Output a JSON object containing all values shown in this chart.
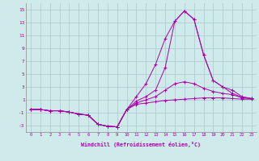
{
  "xlabel": "Windchill (Refroidissement éolien,°C)",
  "background_color": "#ceeaea",
  "grid_color": "#aac8c8",
  "line_color": "#aa00aa",
  "x_values": [
    0,
    1,
    2,
    3,
    4,
    5,
    6,
    7,
    8,
    9,
    10,
    11,
    12,
    13,
    14,
    15,
    16,
    17,
    18,
    19,
    20,
    21,
    22,
    23
  ],
  "series": [
    [
      -0.5,
      -0.5,
      -0.7,
      -0.7,
      -0.9,
      -1.2,
      -1.4,
      -2.8,
      -3.1,
      -3.2,
      -0.5,
      0.3,
      0.5,
      0.7,
      0.9,
      1.0,
      1.1,
      1.2,
      1.3,
      1.3,
      1.3,
      1.2,
      1.1,
      1.1
    ],
    [
      -0.5,
      -0.5,
      -0.7,
      -0.7,
      -0.9,
      -1.2,
      -1.4,
      -2.8,
      -3.1,
      -3.2,
      -0.5,
      0.5,
      1.0,
      1.5,
      2.5,
      3.5,
      3.8,
      3.5,
      2.8,
      2.3,
      2.0,
      1.8,
      1.3,
      1.2
    ],
    [
      -0.5,
      -0.5,
      -0.7,
      -0.7,
      -0.9,
      -1.2,
      -1.4,
      -2.8,
      -3.1,
      -3.2,
      -0.5,
      1.5,
      3.5,
      6.5,
      10.5,
      13.2,
      14.8,
      13.5,
      8.0,
      4.0,
      3.0,
      2.5,
      1.5,
      1.2
    ],
    [
      -0.5,
      -0.5,
      -0.7,
      -0.7,
      -0.9,
      -1.2,
      -1.4,
      -2.8,
      -3.1,
      -3.2,
      -0.5,
      0.8,
      1.5,
      2.5,
      6.0,
      13.2,
      14.8,
      13.5,
      8.0,
      4.0,
      3.0,
      2.0,
      1.4,
      1.2
    ]
  ],
  "ylim": [
    -4,
    16
  ],
  "yticks": [
    -3,
    -1,
    1,
    3,
    5,
    7,
    9,
    11,
    13,
    15
  ],
  "xticks": [
    0,
    1,
    2,
    3,
    4,
    5,
    6,
    7,
    8,
    9,
    10,
    11,
    12,
    13,
    14,
    15,
    16,
    17,
    18,
    19,
    20,
    21,
    22,
    23
  ],
  "figsize": [
    3.2,
    2.0
  ],
  "dpi": 100
}
